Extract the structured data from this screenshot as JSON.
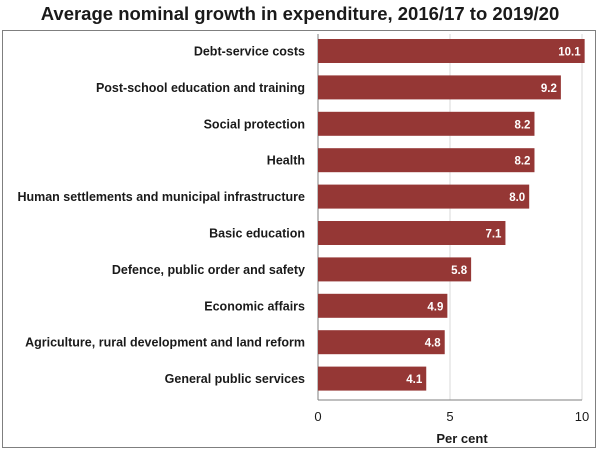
{
  "chart_data": {
    "type": "bar",
    "orientation": "horizontal",
    "title": "Average nominal growth in expenditure, 2016/17 to 2019/20",
    "xlabel": "Per cent",
    "ylabel": "",
    "xlim": [
      0,
      10
    ],
    "xticks": [
      "0",
      "5",
      "10"
    ],
    "grid": true,
    "bar_color": "#953735",
    "categories": [
      "Debt-service costs",
      "Post-school education and training",
      "Social protection",
      "Health",
      "Human settlements and municipal infrastructure",
      "Basic education",
      "Defence, public order and safety",
      "Economic affairs",
      "Agriculture, rural development and land reform",
      "General public services"
    ],
    "values": [
      10.1,
      9.2,
      8.2,
      8.2,
      8.0,
      7.1,
      5.8,
      4.9,
      4.8,
      4.1
    ],
    "labels": [
      "10.1",
      "9.2",
      "8.2",
      "8.2",
      "8.0",
      "7.1",
      "5.8",
      "4.9",
      "4.8",
      "4.1"
    ]
  }
}
